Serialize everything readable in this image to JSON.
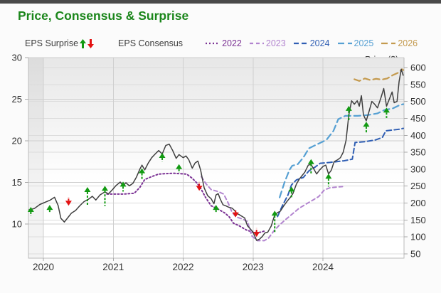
{
  "header": {
    "title": "Price, Consensus & Surprise"
  },
  "legend": {
    "surprise_label": "EPS Surprise",
    "consensus_label": "EPS Consensus",
    "price_label": "Price ($)",
    "up_arrow_color": "#129a12",
    "down_arrow_color": "#e31212",
    "price_color": "#6f6f6f",
    "years": [
      {
        "label": "2022",
        "color": "#7b3294",
        "dash": "2,3"
      },
      {
        "label": "2023",
        "color": "#b284cf",
        "dash": "5,4"
      },
      {
        "label": "2024",
        "color": "#2f5eb3",
        "dash": "7,4"
      },
      {
        "label": "2025",
        "color": "#56a0d3",
        "dash": "9,5"
      },
      {
        "label": "2026",
        "color": "#c49a4e",
        "dash": "9,5"
      }
    ]
  },
  "chart_data": {
    "type": "line",
    "title": "Price, Consensus & Surprise",
    "x_axis": {
      "labels": [
        "2020",
        "2021",
        "2022",
        "2023",
        "2024"
      ],
      "label_years": [
        2020,
        2021,
        2022,
        2023,
        2024
      ],
      "range": [
        2019.786,
        2025.16
      ],
      "grid": true
    },
    "eps_axis": {
      "side": "left",
      "ticks": [
        30,
        25,
        20,
        15,
        10
      ],
      "range": [
        5.9,
        30
      ]
    },
    "price_axis": {
      "side": "right",
      "ticks": [
        600,
        550,
        500,
        450,
        400,
        350,
        300,
        250,
        200,
        150,
        100,
        50
      ],
      "range": [
        37.4,
        629.4
      ]
    },
    "series": {
      "price": {
        "name": "Price ($)",
        "color": "#3f3f3f",
        "width": 1.5,
        "points": [
          [
            2019.79,
            180
          ],
          [
            2019.87,
            184
          ],
          [
            2019.95,
            196
          ],
          [
            2020.02,
            202
          ],
          [
            2020.09,
            208
          ],
          [
            2020.16,
            217
          ],
          [
            2020.21,
            193
          ],
          [
            2020.25,
            155
          ],
          [
            2020.3,
            144
          ],
          [
            2020.35,
            157
          ],
          [
            2020.4,
            170
          ],
          [
            2020.46,
            178
          ],
          [
            2020.52,
            192
          ],
          [
            2020.58,
            204
          ],
          [
            2020.65,
            212
          ],
          [
            2020.7,
            220
          ],
          [
            2020.75,
            209
          ],
          [
            2020.81,
            224
          ],
          [
            2020.88,
            233
          ],
          [
            2020.93,
            227
          ],
          [
            2020.99,
            240
          ],
          [
            2021.04,
            252
          ],
          [
            2021.1,
            262
          ],
          [
            2021.14,
            251
          ],
          [
            2021.18,
            260
          ],
          [
            2021.23,
            251
          ],
          [
            2021.28,
            258
          ],
          [
            2021.33,
            276
          ],
          [
            2021.38,
            300
          ],
          [
            2021.41,
            312
          ],
          [
            2021.45,
            298
          ],
          [
            2021.5,
            318
          ],
          [
            2021.55,
            334
          ],
          [
            2021.6,
            345
          ],
          [
            2021.65,
            355
          ],
          [
            2021.7,
            345
          ],
          [
            2021.75,
            370
          ],
          [
            2021.8,
            374
          ],
          [
            2021.85,
            355
          ],
          [
            2021.9,
            332
          ],
          [
            2021.94,
            343
          ],
          [
            2022.0,
            334
          ],
          [
            2022.04,
            339
          ],
          [
            2022.08,
            328
          ],
          [
            2022.13,
            303
          ],
          [
            2022.17,
            318
          ],
          [
            2022.21,
            324
          ],
          [
            2022.25,
            297
          ],
          [
            2022.3,
            245
          ],
          [
            2022.35,
            222
          ],
          [
            2022.4,
            213
          ],
          [
            2022.44,
            198
          ],
          [
            2022.47,
            224
          ],
          [
            2022.5,
            228
          ],
          [
            2022.53,
            212
          ],
          [
            2022.57,
            195
          ],
          [
            2022.61,
            192
          ],
          [
            2022.65,
            188
          ],
          [
            2022.7,
            185
          ],
          [
            2022.73,
            179
          ],
          [
            2022.77,
            169
          ],
          [
            2022.8,
            166
          ],
          [
            2022.84,
            161
          ],
          [
            2022.88,
            156
          ],
          [
            2022.92,
            133
          ],
          [
            2022.96,
            124
          ],
          [
            2023.0,
            114
          ],
          [
            2023.05,
            90
          ],
          [
            2023.09,
            93
          ],
          [
            2023.13,
            101
          ],
          [
            2023.17,
            112
          ],
          [
            2023.21,
            114
          ],
          [
            2023.26,
            132
          ],
          [
            2023.31,
            165
          ],
          [
            2023.35,
            172
          ],
          [
            2023.39,
            176
          ],
          [
            2023.44,
            192
          ],
          [
            2023.49,
            206
          ],
          [
            2023.53,
            216
          ],
          [
            2023.57,
            228
          ],
          [
            2023.62,
            256
          ],
          [
            2023.66,
            270
          ],
          [
            2023.7,
            281
          ],
          [
            2023.74,
            291
          ],
          [
            2023.79,
            312
          ],
          [
            2023.83,
            314
          ],
          [
            2023.87,
            300
          ],
          [
            2023.91,
            286
          ],
          [
            2023.95,
            297
          ],
          [
            2024.0,
            308
          ],
          [
            2024.04,
            312
          ],
          [
            2024.08,
            286
          ],
          [
            2024.12,
            297
          ],
          [
            2024.16,
            322
          ],
          [
            2024.21,
            328
          ],
          [
            2024.25,
            334
          ],
          [
            2024.29,
            350
          ],
          [
            2024.33,
            385
          ],
          [
            2024.37,
            460
          ],
          [
            2024.41,
            502
          ],
          [
            2024.45,
            492
          ],
          [
            2024.49,
            502
          ],
          [
            2024.52,
            486
          ],
          [
            2024.55,
            517
          ],
          [
            2024.58,
            460
          ],
          [
            2024.62,
            443
          ],
          [
            2024.66,
            471
          ],
          [
            2024.7,
            500
          ],
          [
            2024.74,
            492
          ],
          [
            2024.78,
            481
          ],
          [
            2024.83,
            511
          ],
          [
            2024.87,
            538
          ],
          [
            2024.91,
            486
          ],
          [
            2024.95,
            507
          ],
          [
            2024.99,
            528
          ],
          [
            2025.02,
            496
          ],
          [
            2025.06,
            500
          ],
          [
            2025.09,
            559
          ],
          [
            2025.12,
            595
          ],
          [
            2025.15,
            576
          ]
        ]
      },
      "consensus": [
        {
          "name": "2022",
          "color": "#7b3294",
          "dash": "2,3",
          "width": 2,
          "points": [
            [
              2020.91,
              13.6
            ],
            [
              2021.15,
              13.6
            ],
            [
              2021.3,
              13.7
            ],
            [
              2021.38,
              14.4
            ],
            [
              2021.45,
              15.35
            ],
            [
              2021.55,
              15.7
            ],
            [
              2021.65,
              16.0
            ],
            [
              2021.85,
              16.1
            ],
            [
              2022.05,
              16.0
            ],
            [
              2022.13,
              15.5
            ],
            [
              2022.2,
              14.9
            ],
            [
              2022.25,
              14.3
            ],
            [
              2022.32,
              13.2
            ],
            [
              2022.4,
              12.2
            ],
            [
              2022.5,
              11.8
            ],
            [
              2022.6,
              11.3
            ],
            [
              2022.66,
              10.85
            ],
            [
              2022.72,
              10.1
            ],
            [
              2022.8,
              9.8
            ],
            [
              2022.9,
              9.3
            ],
            [
              2023.0,
              9.0
            ],
            [
              2023.1,
              9.0
            ],
            [
              2023.18,
              9.2
            ]
          ]
        },
        {
          "name": "2023",
          "color": "#b284cf",
          "dash": "5,4",
          "width": 2,
          "points": [
            [
              2022.26,
              15.7
            ],
            [
              2022.32,
              14.9
            ],
            [
              2022.4,
              14.15
            ],
            [
              2022.5,
              13.9
            ],
            [
              2022.58,
              13.6
            ],
            [
              2022.64,
              12.6
            ],
            [
              2022.7,
              11.4
            ],
            [
              2022.76,
              10.85
            ],
            [
              2022.85,
              10.6
            ],
            [
              2022.92,
              10.3
            ],
            [
              2022.98,
              8.6
            ],
            [
              2023.06,
              8.0
            ],
            [
              2023.16,
              8.0
            ],
            [
              2023.22,
              8.3
            ],
            [
              2023.3,
              9.2
            ],
            [
              2023.38,
              9.9
            ],
            [
              2023.46,
              10.5
            ],
            [
              2023.56,
              11.2
            ],
            [
              2023.66,
              11.9
            ],
            [
              2023.76,
              12.4
            ],
            [
              2023.86,
              12.9
            ],
            [
              2023.94,
              13.3
            ],
            [
              2024.02,
              14.1
            ],
            [
              2024.1,
              14.35
            ],
            [
              2024.2,
              14.45
            ],
            [
              2024.28,
              14.5
            ]
          ]
        },
        {
          "name": "2024",
          "color": "#2f5eb3",
          "dash": "7,4",
          "width": 2,
          "points": [
            [
              2023.35,
              10.9
            ],
            [
              2023.42,
              12.2
            ],
            [
              2023.5,
              13.5
            ],
            [
              2023.55,
              14.7
            ],
            [
              2023.62,
              15.3
            ],
            [
              2023.72,
              15.6
            ],
            [
              2023.8,
              16.4
            ],
            [
              2023.88,
              16.8
            ],
            [
              2023.96,
              17.3
            ],
            [
              2024.1,
              17.4
            ],
            [
              2024.3,
              17.6
            ],
            [
              2024.42,
              17.8
            ],
            [
              2024.46,
              19.8
            ],
            [
              2024.6,
              19.9
            ],
            [
              2024.75,
              20.1
            ],
            [
              2024.85,
              20.4
            ],
            [
              2024.9,
              21.2
            ],
            [
              2025.0,
              21.3
            ],
            [
              2025.1,
              21.4
            ],
            [
              2025.15,
              21.5
            ]
          ]
        },
        {
          "name": "2025",
          "color": "#56a0d3",
          "dash": "9,5",
          "width": 2.2,
          "points": [
            [
              2023.38,
              13.2
            ],
            [
              2023.45,
              15.0
            ],
            [
              2023.52,
              16.5
            ],
            [
              2023.56,
              17.0
            ],
            [
              2023.64,
              17.2
            ],
            [
              2023.72,
              18.0
            ],
            [
              2023.8,
              19.1
            ],
            [
              2023.92,
              19.6
            ],
            [
              2024.05,
              20.1
            ],
            [
              2024.15,
              21.2
            ],
            [
              2024.22,
              22.6
            ],
            [
              2024.32,
              23.0
            ],
            [
              2024.5,
              23.0
            ],
            [
              2024.65,
              23.1
            ],
            [
              2024.78,
              23.3
            ],
            [
              2024.88,
              23.7
            ],
            [
              2025.0,
              23.9
            ],
            [
              2025.1,
              24.3
            ],
            [
              2025.15,
              24.4
            ]
          ]
        },
        {
          "name": "2026",
          "color": "#c49a4e",
          "dash": "9,5",
          "width": 2.2,
          "points": [
            [
              2024.45,
              27.4
            ],
            [
              2024.52,
              27.2
            ],
            [
              2024.6,
              27.5
            ],
            [
              2024.68,
              27.3
            ],
            [
              2024.76,
              27.45
            ],
            [
              2024.84,
              27.35
            ],
            [
              2024.92,
              27.5
            ],
            [
              2025.0,
              27.9
            ],
            [
              2025.08,
              28.2
            ],
            [
              2025.13,
              28.6
            ],
            [
              2025.15,
              28.5
            ]
          ]
        }
      ]
    },
    "surprises": [
      {
        "x": 2019.82,
        "dir": "up",
        "tip": 12.05,
        "tail": 11.0
      },
      {
        "x": 2020.09,
        "dir": "up",
        "tip": 12.3,
        "tail": 11.3
      },
      {
        "x": 2020.36,
        "dir": "down",
        "tip": 12.2,
        "tail": 13.25
      },
      {
        "x": 2020.63,
        "dir": "up",
        "tip": 14.45,
        "tail": 12.15
      },
      {
        "x": 2020.88,
        "dir": "up",
        "tip": 14.6,
        "tail": 12.15
      },
      {
        "x": 2021.14,
        "dir": "up",
        "tip": 15.1,
        "tail": 13.9
      },
      {
        "x": 2021.41,
        "dir": "up",
        "tip": 16.7,
        "tail": 15.4
      },
      {
        "x": 2021.7,
        "dir": "up",
        "tip": 18.55,
        "tail": 17.5
      },
      {
        "x": 2021.94,
        "dir": "up",
        "tip": 17.2,
        "tail": 16.15
      },
      {
        "x": 2022.23,
        "dir": "down",
        "tip": 14.0,
        "tail": 15.05
      },
      {
        "x": 2022.47,
        "dir": "up",
        "tip": 12.3,
        "tail": 11.3
      },
      {
        "x": 2022.75,
        "dir": "down",
        "tip": 10.8,
        "tail": 11.8
      },
      {
        "x": 2023.05,
        "dir": "down",
        "tip": 8.45,
        "tail": 9.5
      },
      {
        "x": 2023.31,
        "dir": "up",
        "tip": 11.6,
        "tail": 8.9
      },
      {
        "x": 2023.55,
        "dir": "up",
        "tip": 14.5,
        "tail": 13.15
      },
      {
        "x": 2023.83,
        "dir": "up",
        "tip": 17.8,
        "tail": 16.0
      },
      {
        "x": 2024.08,
        "dir": "up",
        "tip": 16.05,
        "tail": 14.5
      },
      {
        "x": 2024.37,
        "dir": "up",
        "tip": 24.2,
        "tail": 22.4
      },
      {
        "x": 2024.62,
        "dir": "up",
        "tip": 22.3,
        "tail": 21.0
      },
      {
        "x": 2024.91,
        "dir": "up",
        "tip": 24.0,
        "tail": 22.75
      }
    ]
  }
}
